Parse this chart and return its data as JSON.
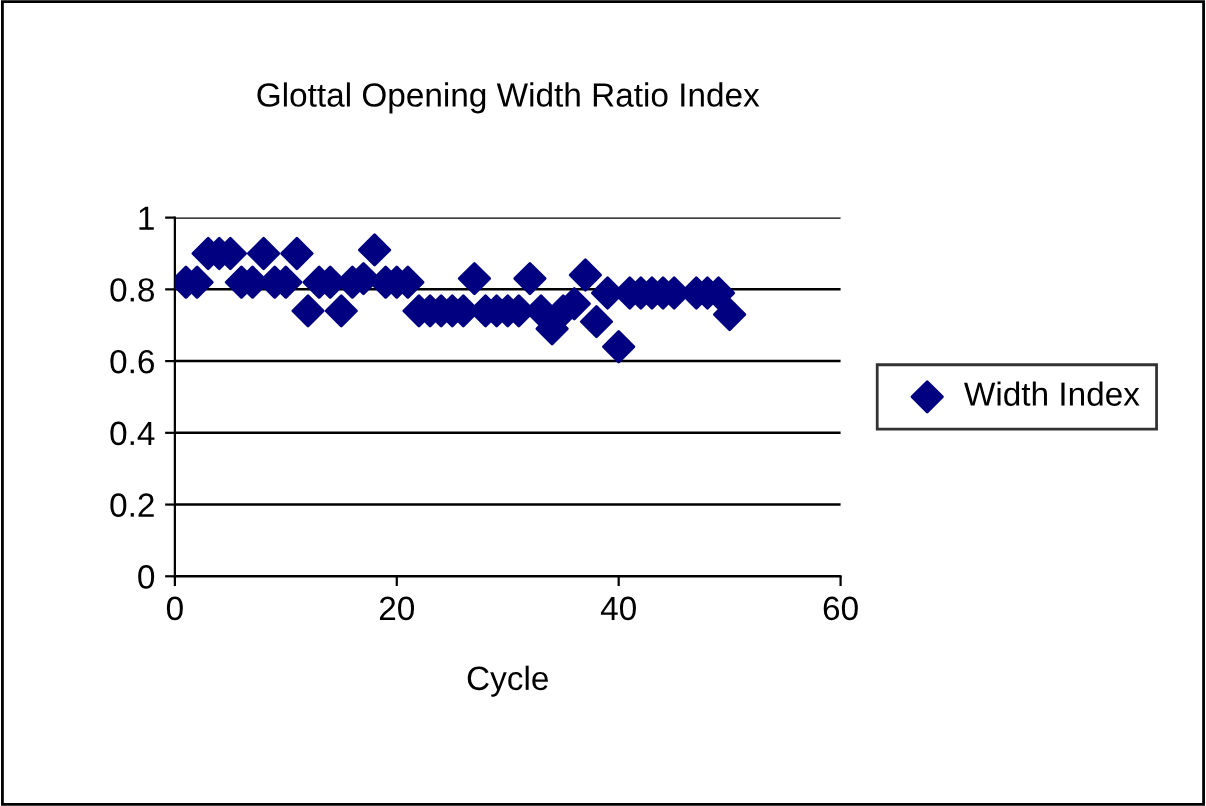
{
  "chart_data": {
    "type": "scatter",
    "title": "Glottal Opening Width Ratio Index",
    "xlabel": "Cycle",
    "series": [
      {
        "name": "Width Index",
        "color": "#000080",
        "x": [
          1,
          2,
          3,
          4,
          5,
          6,
          7,
          8,
          9,
          10,
          11,
          12,
          13,
          14,
          15,
          16,
          17,
          18,
          19,
          20,
          21,
          22,
          23,
          24,
          25,
          26,
          27,
          28,
          29,
          30,
          31,
          32,
          33,
          34,
          35,
          36,
          37,
          38,
          39,
          40,
          41,
          42,
          43,
          44,
          45,
          47,
          48,
          49,
          50
        ],
        "values": [
          0.82,
          0.82,
          0.9,
          0.9,
          0.9,
          0.82,
          0.82,
          0.9,
          0.82,
          0.82,
          0.9,
          0.74,
          0.82,
          0.82,
          0.74,
          0.82,
          0.83,
          0.91,
          0.82,
          0.82,
          0.82,
          0.74,
          0.74,
          0.74,
          0.74,
          0.74,
          0.83,
          0.74,
          0.74,
          0.74,
          0.74,
          0.83,
          0.74,
          0.69,
          0.74,
          0.76,
          0.84,
          0.71,
          0.79,
          0.64,
          0.79,
          0.79,
          0.79,
          0.79,
          0.79,
          0.79,
          0.79,
          0.79,
          0.73
        ]
      }
    ],
    "xlim": [
      0,
      60
    ],
    "xticks": [
      0,
      20,
      40,
      60
    ],
    "ylim": [
      0,
      1
    ],
    "yticks": [
      0,
      0.2,
      0.4,
      0.6,
      0.8,
      1
    ],
    "grid": "y",
    "legend": "right",
    "marker": "diamond"
  }
}
